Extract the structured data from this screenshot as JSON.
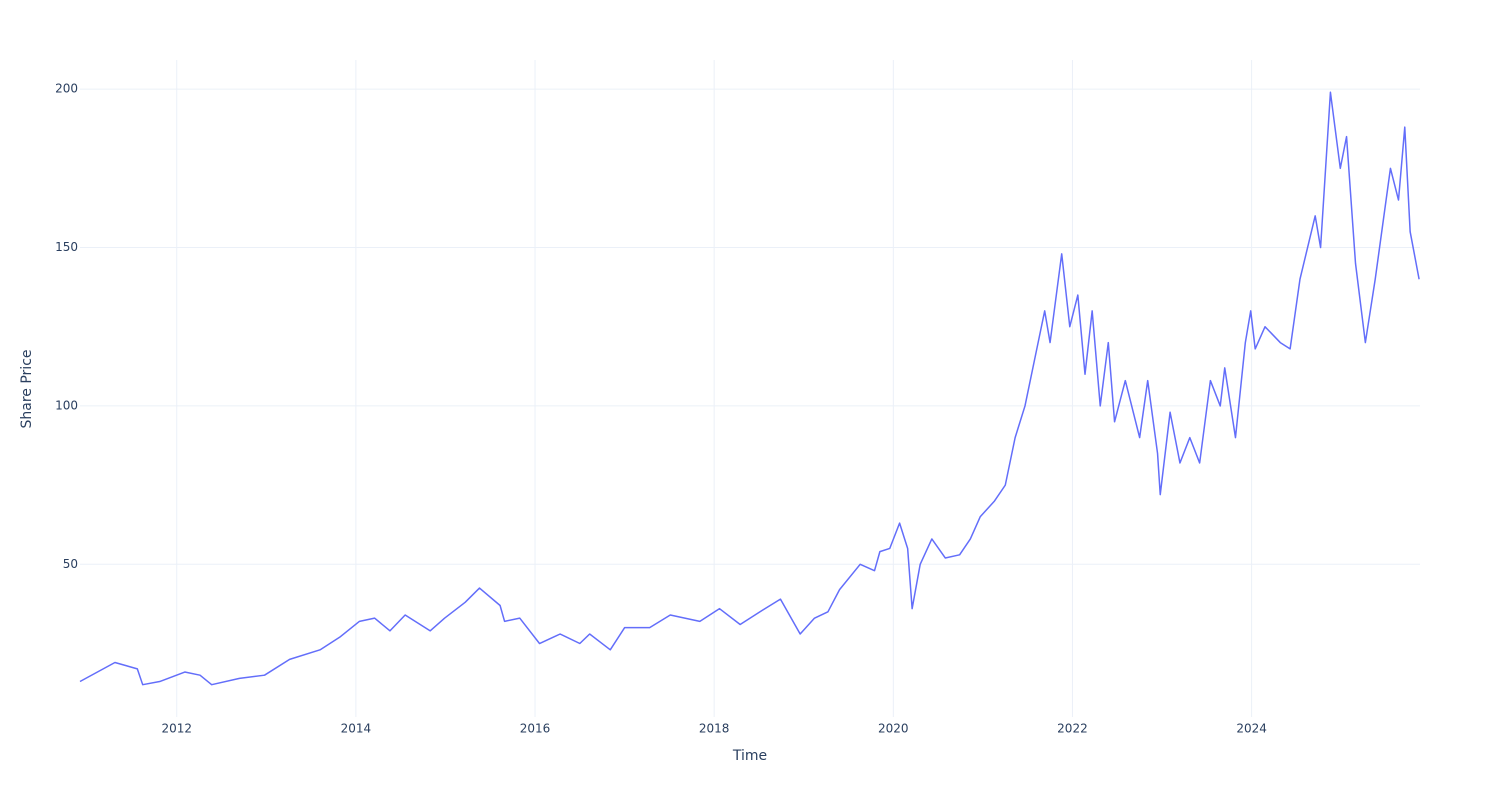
{
  "chart_data": {
    "type": "line",
    "x_label": "Time",
    "y_label": "Share Price",
    "x": [
      2010.92,
      2011.31,
      2011.56,
      2011.62,
      2011.81,
      2012.09,
      2012.26,
      2012.39,
      2012.7,
      2012.98,
      2013.26,
      2013.6,
      2013.82,
      2014.04,
      2014.21,
      2014.38,
      2014.55,
      2014.83,
      2014.99,
      2015.22,
      2015.38,
      2015.61,
      2015.66,
      2015.83,
      2016.05,
      2016.28,
      2016.5,
      2016.61,
      2016.84,
      2017.0,
      2017.28,
      2017.51,
      2017.84,
      2018.06,
      2018.29,
      2018.51,
      2018.74,
      2018.96,
      2019.12,
      2019.27,
      2019.4,
      2019.63,
      2019.79,
      2019.85,
      2019.96,
      2020.07,
      2020.16,
      2020.21,
      2020.3,
      2020.43,
      2020.58,
      2020.74,
      2020.86,
      2020.97,
      2021.13,
      2021.25,
      2021.36,
      2021.47,
      2021.58,
      2021.69,
      2021.75,
      2021.88,
      2021.97,
      2022.06,
      2022.14,
      2022.22,
      2022.31,
      2022.4,
      2022.47,
      2022.59,
      2022.75,
      2022.84,
      2022.95,
      2022.98,
      2023.09,
      2023.2,
      2023.31,
      2023.42,
      2023.54,
      2023.65,
      2023.7,
      2023.82,
      2023.93,
      2023.99,
      2024.04,
      2024.15,
      2024.32,
      2024.43,
      2024.54,
      2024.71,
      2024.77,
      2024.88,
      2024.99,
      2025.06,
      2025.16,
      2025.27,
      2025.38,
      2025.55,
      2025.64,
      2025.71,
      2025.77,
      2025.87
    ],
    "series": [
      {
        "color": "#636efa",
        "values": [
          13,
          19,
          17,
          12,
          13,
          16,
          15,
          12,
          14,
          15,
          20,
          23,
          27,
          32,
          33,
          29,
          34,
          29,
          33,
          38,
          42.5,
          37,
          32,
          33,
          25,
          28,
          25,
          28,
          23,
          30,
          30,
          34,
          32,
          36,
          31,
          35,
          39,
          28,
          33,
          35,
          42,
          50,
          48,
          54,
          55,
          63,
          55,
          36,
          50,
          58,
          52,
          53,
          58,
          65,
          70,
          75,
          90,
          100,
          115,
          130,
          120,
          148,
          125,
          135,
          110,
          130,
          100,
          120,
          95,
          108,
          90,
          108,
          85,
          72,
          98,
          82,
          90,
          82,
          108,
          100,
          112,
          90,
          120,
          130,
          118,
          125,
          120,
          118,
          140,
          160,
          150,
          199,
          175,
          185,
          145,
          120,
          140,
          175,
          165,
          188,
          155,
          140
        ]
      }
    ],
    "xlim": [
      2010.92,
      2025.88
    ],
    "xticks": [
      2012,
      2014,
      2016,
      2018,
      2020,
      2022,
      2024
    ],
    "ylim": [
      1.8,
      209.2
    ],
    "yticks": [
      50,
      100,
      150,
      200
    ],
    "grid": true
  }
}
